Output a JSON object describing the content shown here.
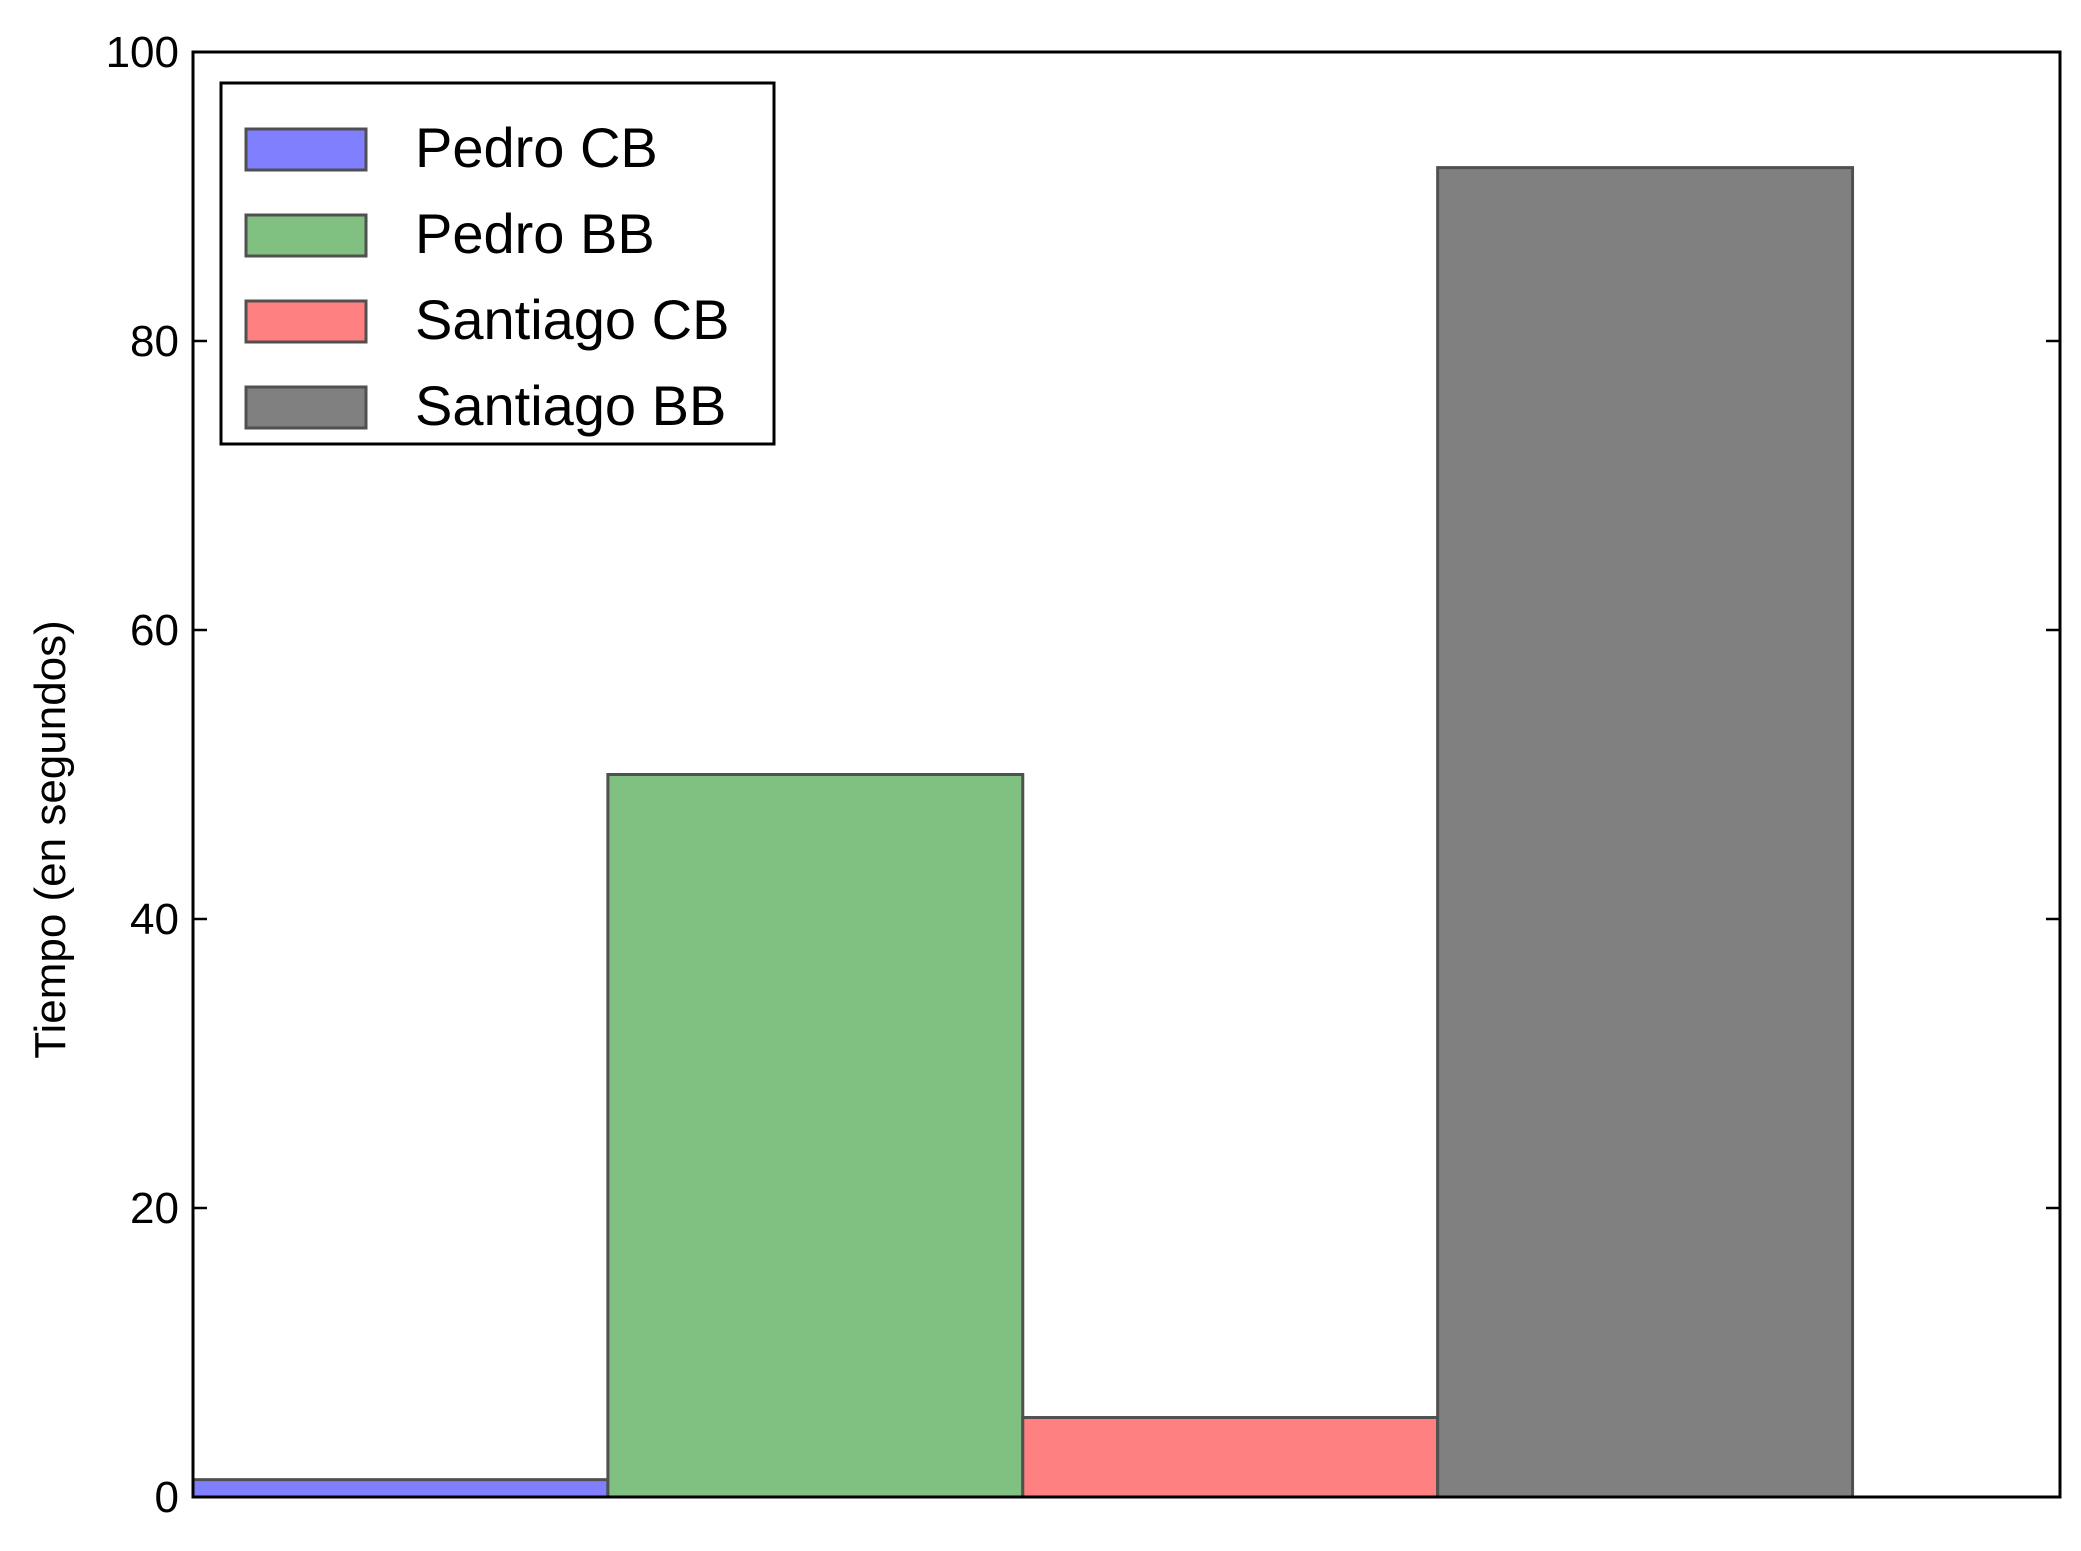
{
  "chart_data": {
    "type": "bar",
    "title": "",
    "xlabel": "",
    "ylabel": "Tiempo (en segundos)",
    "ylim": [
      0,
      100
    ],
    "xlim": [
      0,
      4.5
    ],
    "yticks": [
      "0",
      "20",
      "40",
      "60",
      "80",
      "100"
    ],
    "yticks_values": [
      0,
      20,
      40,
      60,
      80,
      100
    ],
    "grid": false,
    "legend_position": "top-left",
    "series": [
      {
        "name": "Pedro CB",
        "x": 0,
        "value": 1.2,
        "color": "#8080ff"
      },
      {
        "name": "Pedro BB",
        "x": 1,
        "value": 50,
        "color": "#80c080"
      },
      {
        "name": "Santiago CB",
        "x": 2,
        "value": 5.5,
        "color": "#ff8080"
      },
      {
        "name": "Santiago BB",
        "x": 3,
        "value": 92,
        "color": "#808080"
      }
    ],
    "bar_width": 1
  }
}
